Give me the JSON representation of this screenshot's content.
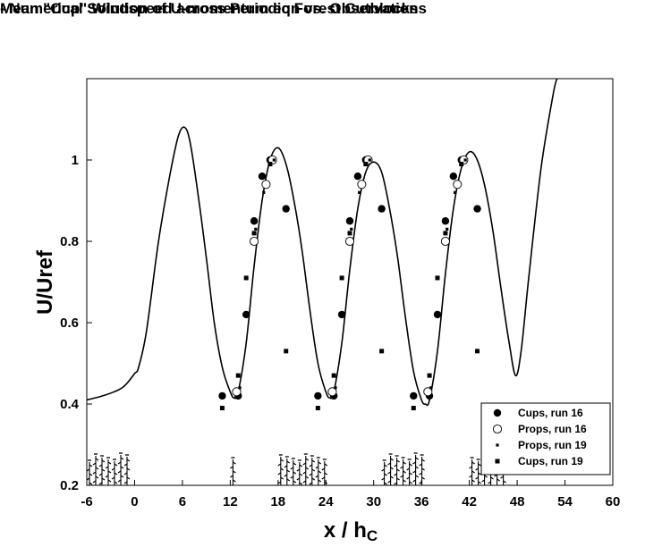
{
  "chart_data": {
    "type": "line",
    "title": "Mean \"Cup\" Windspeed across Periodic Forest Cutblocks",
    "subtitle": "- Numerical Solution of U-momentum eqn vs. Observations",
    "xlabel_main": "x / h",
    "xlabel_sub": "C",
    "ylabel": "U/Uref",
    "xlim": [
      -6,
      60
    ],
    "ylim": [
      0.2,
      1.2
    ],
    "x_ticks": [
      -6,
      0,
      6,
      12,
      18,
      24,
      30,
      36,
      42,
      48,
      54,
      60
    ],
    "y_ticks": [
      0.2,
      0.4,
      0.6,
      0.8,
      1.0
    ],
    "y_tick_labels": [
      "0.2",
      "0.4",
      "0.6",
      "0.8",
      "1"
    ],
    "grid": false,
    "legend_position": "bottom-right",
    "series": [
      {
        "name": "",
        "kind": "line",
        "x": [
          -6,
          -4,
          -2,
          -1,
          0,
          0.5,
          1.5,
          3,
          4.5,
          5.5,
          6.3,
          7,
          8,
          9,
          10,
          11,
          12,
          12.5,
          13,
          14,
          15,
          16,
          17,
          18,
          19,
          20,
          21,
          22,
          23,
          24,
          24.5,
          25,
          26,
          27,
          28,
          29,
          30,
          31,
          32,
          33,
          34,
          35,
          36,
          36.5,
          37,
          38,
          39,
          40,
          41,
          42,
          43,
          44,
          45,
          46,
          47,
          47.8,
          48.5,
          49.5,
          51,
          52.5,
          53
        ],
        "y": [
          0.41,
          0.42,
          0.435,
          0.45,
          0.475,
          0.49,
          0.58,
          0.8,
          0.97,
          1.06,
          1.08,
          1.04,
          0.91,
          0.76,
          0.6,
          0.49,
          0.43,
          0.415,
          0.43,
          0.55,
          0.74,
          0.9,
          1.0,
          1.03,
          0.99,
          0.9,
          0.78,
          0.63,
          0.5,
          0.43,
          0.415,
          0.43,
          0.55,
          0.73,
          0.88,
          0.97,
          0.995,
          0.97,
          0.88,
          0.76,
          0.61,
          0.48,
          0.41,
          0.4,
          0.41,
          0.53,
          0.72,
          0.88,
          0.98,
          1.02,
          1.0,
          0.93,
          0.82,
          0.68,
          0.55,
          0.47,
          0.53,
          0.72,
          0.98,
          1.16,
          1.2
        ]
      },
      {
        "name": "Cups, run 16",
        "kind": "filled-circle",
        "x": [
          11,
          13,
          14,
          15,
          16,
          17,
          19,
          23,
          25,
          26,
          27,
          28,
          29,
          31,
          35,
          37,
          38,
          39,
          40,
          41,
          43
        ],
        "y": [
          0.42,
          0.42,
          0.62,
          0.85,
          0.96,
          1.0,
          0.88,
          0.42,
          0.42,
          0.62,
          0.85,
          0.96,
          1.0,
          0.88,
          0.42,
          0.42,
          0.62,
          0.85,
          0.96,
          1.0,
          0.88
        ]
      },
      {
        "name": "Props, run 16",
        "kind": "open-circle",
        "x": [
          12.8,
          15,
          16.5,
          17.3,
          24.8,
          27,
          28.5,
          29.3,
          36.8,
          39,
          40.5,
          41.3
        ],
        "y": [
          0.43,
          0.8,
          0.94,
          1.0,
          0.43,
          0.8,
          0.94,
          1.0,
          0.43,
          0.8,
          0.94,
          1.0
        ]
      },
      {
        "name": "Props, run 19",
        "kind": "small-square",
        "x": [
          13.2,
          15.2,
          16.2,
          17.5,
          25.2,
          27.2,
          28.2,
          29.5,
          37.2,
          39.2,
          40.2,
          41.5
        ],
        "y": [
          0.44,
          0.83,
          0.92,
          1.0,
          0.44,
          0.83,
          0.92,
          1.0,
          0.44,
          0.83,
          0.92,
          1.0
        ]
      },
      {
        "name": "Cups, run 19",
        "kind": "filled-square",
        "x": [
          11,
          13,
          14,
          15,
          16,
          17,
          19,
          23,
          25,
          26,
          27,
          28,
          29,
          31,
          35,
          37,
          38,
          39,
          40,
          41,
          43
        ],
        "y": [
          0.39,
          0.47,
          0.71,
          0.82,
          0.96,
          0.99,
          0.53,
          0.39,
          0.47,
          0.71,
          0.82,
          0.96,
          0.99,
          0.53,
          0.39,
          0.47,
          0.71,
          0.82,
          0.96,
          0.99,
          0.53
        ]
      }
    ],
    "tree_clusters": [
      [
        -6,
        -0.5
      ],
      [
        12,
        13
      ],
      [
        18,
        24.5
      ],
      [
        31,
        36.5
      ],
      [
        42,
        47
      ]
    ]
  }
}
